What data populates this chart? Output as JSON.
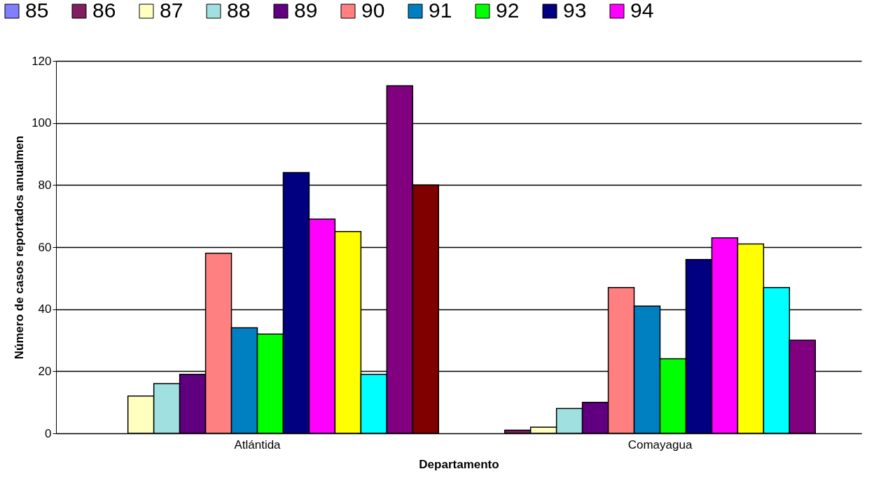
{
  "chart_data": {
    "type": "bar",
    "xlabel": "Departamento",
    "ylabel": "Número de casos reportados anualmen",
    "categories": [
      "Atlántida",
      "Comayagua"
    ],
    "series": [
      {
        "name": "85",
        "color": "#8080ff",
        "values": [
          0,
          0
        ]
      },
      {
        "name": "86",
        "color": "#802060",
        "values": [
          0,
          1
        ]
      },
      {
        "name": "87",
        "color": "#ffffc0",
        "values": [
          12,
          2
        ]
      },
      {
        "name": "88",
        "color": "#a0e0e0",
        "values": [
          16,
          8
        ]
      },
      {
        "name": "89",
        "color": "#600080",
        "values": [
          19,
          10
        ]
      },
      {
        "name": "90",
        "color": "#ff8080",
        "values": [
          58,
          47
        ]
      },
      {
        "name": "91",
        "color": "#0080c0",
        "values": [
          34,
          41
        ]
      },
      {
        "name": "92",
        "color": "#00ff00",
        "values": [
          32,
          24
        ]
      },
      {
        "name": "93",
        "color": "#000080",
        "values": [
          84,
          56
        ]
      },
      {
        "name": "94",
        "color": "#ff00ff",
        "values": [
          69,
          63
        ]
      },
      {
        "color": "#ffff00",
        "values": [
          65,
          61
        ]
      },
      {
        "color": "#00ffff",
        "values": [
          19,
          47
        ]
      },
      {
        "color": "#800080",
        "values": [
          112,
          30
        ]
      },
      {
        "color": "#800000",
        "values": [
          80,
          0
        ]
      }
    ],
    "ylim": [
      0,
      120
    ],
    "yticks": [
      0,
      20,
      40,
      60,
      80,
      100,
      120
    ],
    "grid": "y",
    "legend": "top"
  }
}
